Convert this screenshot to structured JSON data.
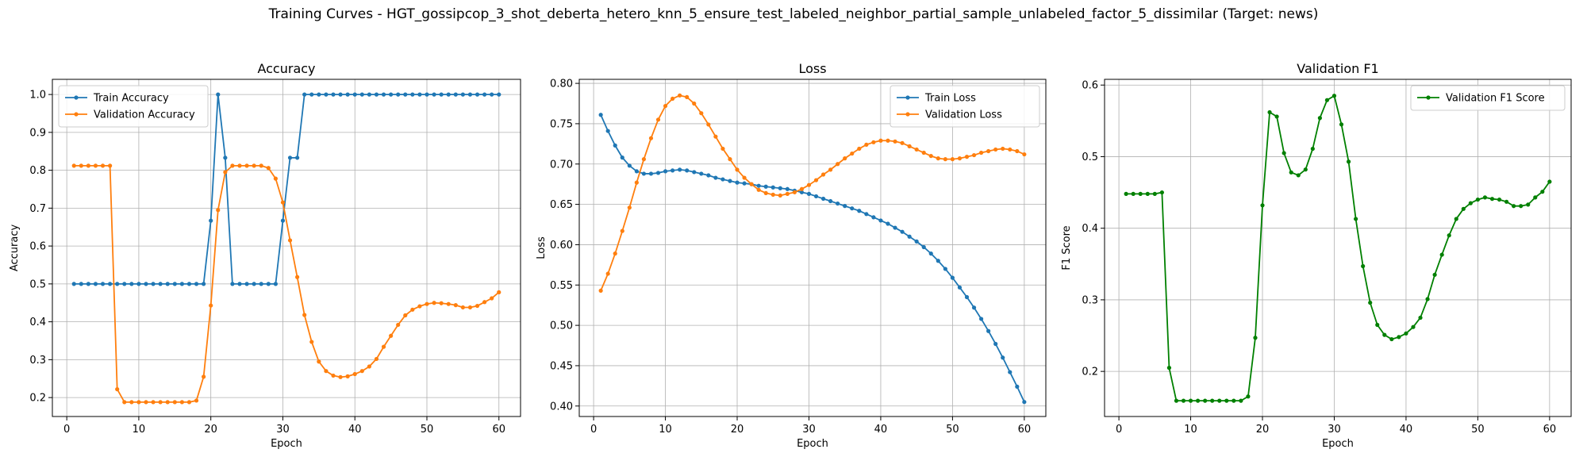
{
  "figure": {
    "suptitle": "Training Curves - HGT_gossipcop_3_shot_deberta_hetero_knn_5_ensure_test_labeled_neighbor_partial_sample_unlabeled_factor_5_dissimilar (Target: news)"
  },
  "chart_data": [
    {
      "type": "line",
      "title": "Accuracy",
      "xlabel": "Epoch",
      "ylabel": "Accuracy",
      "xlim": [
        -2,
        63
      ],
      "ylim": [
        0.15,
        1.04
      ],
      "xticks": [
        0,
        10,
        20,
        30,
        40,
        50,
        60
      ],
      "yticks": [
        0.2,
        0.3,
        0.4,
        0.5,
        0.6,
        0.7,
        0.8,
        0.9,
        1.0
      ],
      "ytick_labels": [
        "0.2",
        "0.3",
        "0.4",
        "0.5",
        "0.6",
        "0.7",
        "0.8",
        "0.9",
        "1.0"
      ],
      "grid": true,
      "legend_position": "upper left",
      "x": [
        1,
        2,
        3,
        4,
        5,
        6,
        7,
        8,
        9,
        10,
        11,
        12,
        13,
        14,
        15,
        16,
        17,
        18,
        19,
        20,
        21,
        22,
        23,
        24,
        25,
        26,
        27,
        28,
        29,
        30,
        31,
        32,
        33,
        34,
        35,
        36,
        37,
        38,
        39,
        40,
        41,
        42,
        43,
        44,
        45,
        46,
        47,
        48,
        49,
        50,
        51,
        52,
        53,
        54,
        55,
        56,
        57,
        58,
        59,
        60
      ],
      "series": [
        {
          "name": "Train Accuracy",
          "color": "#1f77b4",
          "values": [
            0.5,
            0.5,
            0.5,
            0.5,
            0.5,
            0.5,
            0.5,
            0.5,
            0.5,
            0.5,
            0.5,
            0.5,
            0.5,
            0.5,
            0.5,
            0.5,
            0.5,
            0.5,
            0.5,
            0.667,
            1.0,
            0.833,
            0.5,
            0.5,
            0.5,
            0.5,
            0.5,
            0.5,
            0.5,
            0.667,
            0.833,
            0.833,
            1.0,
            1.0,
            1.0,
            1.0,
            1.0,
            1.0,
            1.0,
            1.0,
            1.0,
            1.0,
            1.0,
            1.0,
            1.0,
            1.0,
            1.0,
            1.0,
            1.0,
            1.0,
            1.0,
            1.0,
            1.0,
            1.0,
            1.0,
            1.0,
            1.0,
            1.0,
            1.0,
            1.0
          ]
        },
        {
          "name": "Validation Accuracy",
          "color": "#ff7f0e",
          "values": [
            0.812,
            0.812,
            0.812,
            0.812,
            0.812,
            0.812,
            0.222,
            0.188,
            0.188,
            0.188,
            0.188,
            0.188,
            0.188,
            0.188,
            0.188,
            0.188,
            0.188,
            0.192,
            0.255,
            0.443,
            0.695,
            0.795,
            0.812,
            0.812,
            0.812,
            0.812,
            0.812,
            0.806,
            0.778,
            0.715,
            0.615,
            0.518,
            0.418,
            0.347,
            0.295,
            0.27,
            0.258,
            0.254,
            0.256,
            0.262,
            0.27,
            0.282,
            0.302,
            0.334,
            0.363,
            0.392,
            0.417,
            0.432,
            0.441,
            0.447,
            0.45,
            0.449,
            0.447,
            0.444,
            0.438,
            0.438,
            0.442,
            0.452,
            0.462,
            0.478
          ]
        }
      ]
    },
    {
      "type": "line",
      "title": "Loss",
      "xlabel": "Epoch",
      "ylabel": "Loss",
      "xlim": [
        -2,
        63
      ],
      "ylim": [
        0.387,
        0.805
      ],
      "xticks": [
        0,
        10,
        20,
        30,
        40,
        50,
        60
      ],
      "yticks": [
        0.4,
        0.45,
        0.5,
        0.55,
        0.6,
        0.65,
        0.7,
        0.75,
        0.8
      ],
      "ytick_labels": [
        "0.40",
        "0.45",
        "0.50",
        "0.55",
        "0.60",
        "0.65",
        "0.70",
        "0.75",
        "0.80"
      ],
      "grid": true,
      "legend_position": "upper right",
      "x": [
        1,
        2,
        3,
        4,
        5,
        6,
        7,
        8,
        9,
        10,
        11,
        12,
        13,
        14,
        15,
        16,
        17,
        18,
        19,
        20,
        21,
        22,
        23,
        24,
        25,
        26,
        27,
        28,
        29,
        30,
        31,
        32,
        33,
        34,
        35,
        36,
        37,
        38,
        39,
        40,
        41,
        42,
        43,
        44,
        45,
        46,
        47,
        48,
        49,
        50,
        51,
        52,
        53,
        54,
        55,
        56,
        57,
        58,
        59,
        60
      ],
      "series": [
        {
          "name": "Train Loss",
          "color": "#1f77b4",
          "values": [
            0.761,
            0.741,
            0.723,
            0.708,
            0.698,
            0.691,
            0.688,
            0.688,
            0.689,
            0.691,
            0.692,
            0.693,
            0.692,
            0.69,
            0.688,
            0.686,
            0.683,
            0.681,
            0.679,
            0.677,
            0.676,
            0.675,
            0.673,
            0.672,
            0.671,
            0.67,
            0.669,
            0.667,
            0.665,
            0.663,
            0.66,
            0.657,
            0.654,
            0.651,
            0.648,
            0.645,
            0.642,
            0.638,
            0.634,
            0.63,
            0.626,
            0.621,
            0.616,
            0.61,
            0.604,
            0.597,
            0.589,
            0.58,
            0.57,
            0.559,
            0.547,
            0.535,
            0.522,
            0.508,
            0.493,
            0.477,
            0.46,
            0.442,
            0.424,
            0.405
          ]
        },
        {
          "name": "Validation Loss",
          "color": "#ff7f0e",
          "values": [
            0.543,
            0.564,
            0.589,
            0.617,
            0.646,
            0.677,
            0.706,
            0.732,
            0.755,
            0.772,
            0.781,
            0.785,
            0.783,
            0.775,
            0.763,
            0.749,
            0.734,
            0.719,
            0.706,
            0.693,
            0.683,
            0.675,
            0.668,
            0.664,
            0.662,
            0.661,
            0.663,
            0.665,
            0.669,
            0.674,
            0.68,
            0.687,
            0.693,
            0.7,
            0.707,
            0.713,
            0.719,
            0.724,
            0.727,
            0.729,
            0.729,
            0.728,
            0.726,
            0.722,
            0.718,
            0.714,
            0.71,
            0.707,
            0.706,
            0.706,
            0.707,
            0.709,
            0.711,
            0.714,
            0.716,
            0.718,
            0.719,
            0.718,
            0.716,
            0.712
          ]
        }
      ]
    },
    {
      "type": "line",
      "title": "Validation F1",
      "xlabel": "Epoch",
      "ylabel": "F1 Score",
      "xlim": [
        -2,
        63
      ],
      "ylim": [
        0.137,
        0.608
      ],
      "xticks": [
        0,
        10,
        20,
        30,
        40,
        50,
        60
      ],
      "yticks": [
        0.2,
        0.3,
        0.4,
        0.5,
        0.6
      ],
      "ytick_labels": [
        "0.2",
        "0.3",
        "0.4",
        "0.5",
        "0.6"
      ],
      "grid": true,
      "legend_position": "upper right",
      "x": [
        1,
        2,
        3,
        4,
        5,
        6,
        7,
        8,
        9,
        10,
        11,
        12,
        13,
        14,
        15,
        16,
        17,
        18,
        19,
        20,
        21,
        22,
        23,
        24,
        25,
        26,
        27,
        28,
        29,
        30,
        31,
        32,
        33,
        34,
        35,
        36,
        37,
        38,
        39,
        40,
        41,
        42,
        43,
        44,
        45,
        46,
        47,
        48,
        49,
        50,
        51,
        52,
        53,
        54,
        55,
        56,
        57,
        58,
        59,
        60
      ],
      "series": [
        {
          "name": "Validation F1 Score",
          "color": "#008000",
          "values": [
            0.448,
            0.448,
            0.448,
            0.448,
            0.448,
            0.45,
            0.205,
            0.159,
            0.159,
            0.159,
            0.159,
            0.159,
            0.159,
            0.159,
            0.159,
            0.159,
            0.159,
            0.165,
            0.247,
            0.432,
            0.562,
            0.556,
            0.505,
            0.478,
            0.474,
            0.482,
            0.511,
            0.554,
            0.579,
            0.585,
            0.545,
            0.493,
            0.413,
            0.347,
            0.296,
            0.265,
            0.251,
            0.245,
            0.248,
            0.253,
            0.262,
            0.275,
            0.301,
            0.335,
            0.363,
            0.39,
            0.413,
            0.427,
            0.435,
            0.44,
            0.443,
            0.441,
            0.44,
            0.437,
            0.431,
            0.431,
            0.433,
            0.443,
            0.451,
            0.465
          ]
        }
      ]
    }
  ]
}
